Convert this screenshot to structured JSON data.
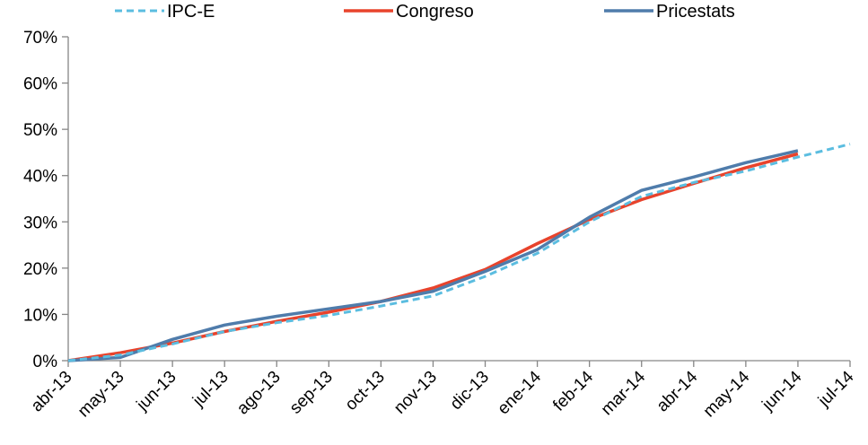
{
  "chart_data": {
    "type": "line",
    "categories": [
      "abr-13",
      "may-13",
      "jun-13",
      "jul-13",
      "ago-13",
      "sep-13",
      "oct-13",
      "nov-13",
      "dic-13",
      "ene-14",
      "feb-14",
      "mar-14",
      "abr-14",
      "may-14",
      "jun-14",
      "jul-14"
    ],
    "y_ticks": [
      "0%",
      "10%",
      "20%",
      "30%",
      "40%",
      "50%",
      "60%",
      "70%"
    ],
    "ylim": [
      0,
      70
    ],
    "grid": false,
    "legend_position": "top",
    "series": [
      {
        "name": "IPC-E",
        "color": "#5bbde0",
        "dashed": true,
        "values": [
          0,
          1.2,
          3.6,
          6.3,
          8.2,
          9.8,
          11.8,
          14.0,
          18.2,
          23.2,
          30.0,
          35.5,
          38.5,
          41.0,
          44.0,
          46.8
        ]
      },
      {
        "name": "Congreso",
        "color": "#e8432c",
        "dashed": false,
        "values": [
          0,
          1.7,
          3.8,
          6.3,
          8.5,
          10.5,
          12.8,
          15.7,
          19.7,
          25.3,
          30.5,
          34.8,
          38.3,
          41.7,
          44.7,
          null
        ]
      },
      {
        "name": "Pricestats",
        "color": "#4f7cab",
        "dashed": false,
        "values": [
          0,
          0.7,
          4.6,
          7.7,
          9.6,
          11.2,
          12.8,
          15.0,
          19.3,
          24.0,
          31.0,
          36.8,
          39.7,
          42.8,
          45.4,
          null
        ]
      }
    ]
  }
}
